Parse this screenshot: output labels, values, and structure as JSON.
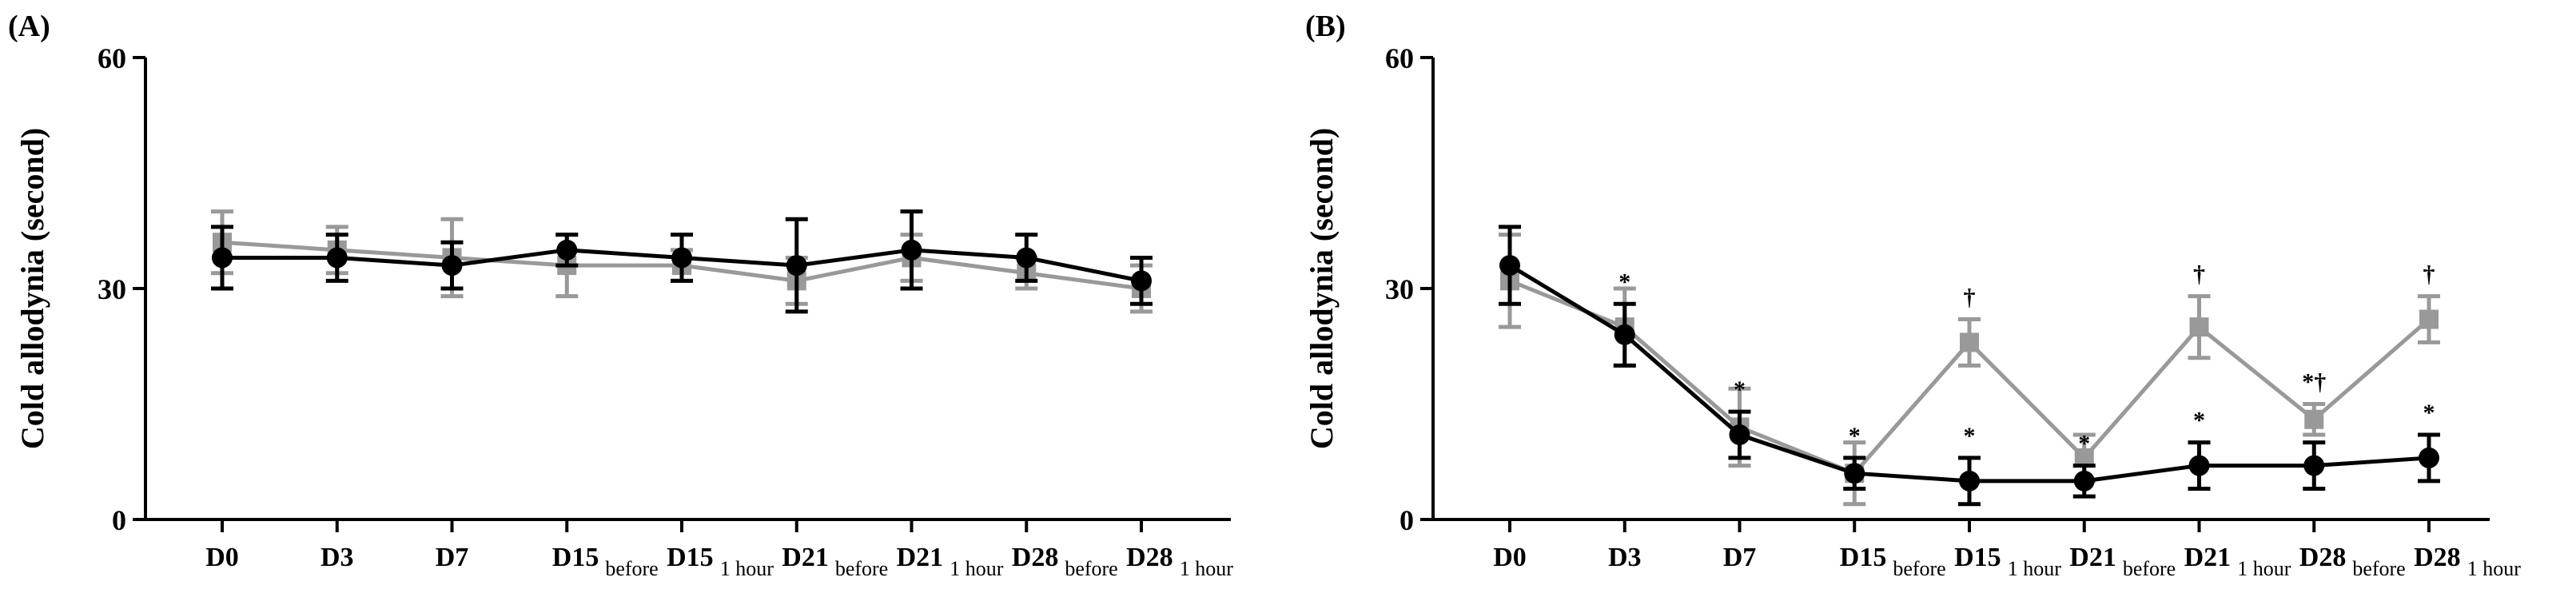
{
  "chart_data": [
    {
      "type": "line",
      "panel_label": "(A)",
      "ylabel": "Cold allodynia (second)",
      "xlabel": "",
      "ylim": [
        0,
        60
      ],
      "yticks": [
        "0",
        "30",
        "60"
      ],
      "categories": [
        {
          "main": "D0",
          "sub": ""
        },
        {
          "main": "D3",
          "sub": ""
        },
        {
          "main": "D7",
          "sub": ""
        },
        {
          "main": "D15",
          "sub": "before"
        },
        {
          "main": "D15",
          "sub": "1 hour"
        },
        {
          "main": "D21",
          "sub": "before"
        },
        {
          "main": "D21",
          "sub": "1 hour"
        },
        {
          "main": "D28",
          "sub": "before"
        },
        {
          "main": "D28",
          "sub": "1 hour"
        }
      ],
      "series": [
        {
          "name": "gray",
          "color": "#999999",
          "marker": "square",
          "values": [
            36,
            35,
            34,
            33,
            33,
            31,
            34,
            32,
            30
          ],
          "errors": [
            4,
            3,
            5,
            4,
            2,
            3,
            3,
            2,
            3
          ],
          "annotations": [
            "",
            "",
            "",
            "",
            "",
            "",
            "",
            "",
            ""
          ]
        },
        {
          "name": "black",
          "color": "#000000",
          "marker": "circle",
          "values": [
            34,
            34,
            33,
            35,
            34,
            33,
            35,
            34,
            31
          ],
          "errors": [
            4,
            3,
            3,
            2,
            3,
            6,
            5,
            3,
            3
          ],
          "annotations": [
            "",
            "",
            "",
            "",
            "",
            "",
            "",
            "",
            ""
          ]
        }
      ]
    },
    {
      "type": "line",
      "panel_label": "(B)",
      "ylabel": "Cold allodynia (second)",
      "xlabel": "",
      "ylim": [
        0,
        60
      ],
      "yticks": [
        "0",
        "30",
        "60"
      ],
      "categories": [
        {
          "main": "D0",
          "sub": ""
        },
        {
          "main": "D3",
          "sub": ""
        },
        {
          "main": "D7",
          "sub": ""
        },
        {
          "main": "D15",
          "sub": "before"
        },
        {
          "main": "D15",
          "sub": "1 hour"
        },
        {
          "main": "D21",
          "sub": "before"
        },
        {
          "main": "D21",
          "sub": "1 hour"
        },
        {
          "main": "D28",
          "sub": "before"
        },
        {
          "main": "D28",
          "sub": "1 hour"
        }
      ],
      "series": [
        {
          "name": "gray",
          "color": "#999999",
          "marker": "square",
          "values": [
            31,
            25,
            12,
            6,
            23,
            8,
            25,
            13,
            26
          ],
          "errors": [
            6,
            5,
            5,
            4,
            3,
            3,
            4,
            2,
            3
          ],
          "annotations": [
            "",
            "",
            "",
            "",
            "†",
            "",
            "†",
            "*†",
            "†"
          ]
        },
        {
          "name": "black",
          "color": "#000000",
          "marker": "circle",
          "values": [
            33,
            24,
            11,
            6,
            5,
            5,
            7,
            7,
            8
          ],
          "errors": [
            5,
            4,
            3,
            2,
            3,
            2,
            3,
            3,
            3
          ],
          "annotations": [
            "",
            "*",
            "*",
            "*",
            "*",
            "*",
            "*",
            "",
            "*"
          ]
        }
      ]
    }
  ]
}
